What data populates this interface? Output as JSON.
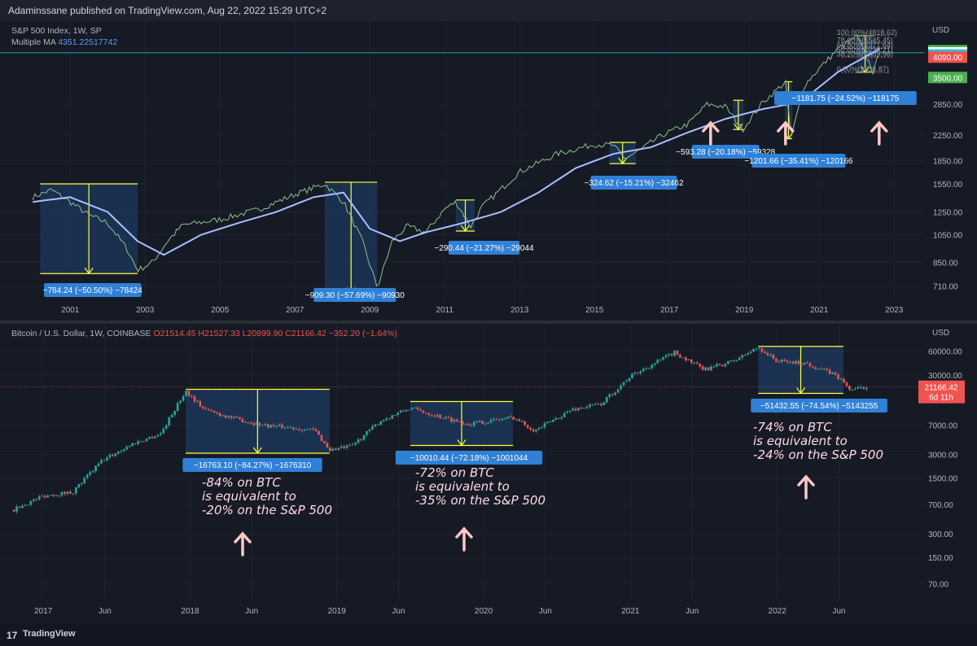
{
  "header": {
    "publisher": "Adaminssane published on TradingView.com, Aug 22, 2022 15:29 UTC+2"
  },
  "footer": {
    "brand": "TradingView",
    "logo": "17"
  },
  "colors": {
    "yellow": "#ffff3b",
    "box": "#1e3a5f",
    "label": "#2f80d6",
    "ma": "#a8c0ff",
    "up": "#26a69a",
    "down": "#ef5350",
    "arrow": "#ffc7c7"
  },
  "chart_data": [
    {
      "type": "line",
      "title": "S&P 500 Index, 1W, SP",
      "indicator": {
        "name": "Multiple MA",
        "value": "4351.22517742"
      },
      "currency": "USD",
      "scale": "log",
      "xlabel": "",
      "ylabel": "",
      "x_ticks": [
        "2001",
        "2003",
        "2005",
        "2007",
        "2009",
        "2011",
        "2013",
        "2015",
        "2017",
        "2019",
        "2021",
        "2023"
      ],
      "y_ticks": [
        710,
        850,
        1050,
        1250,
        1550,
        1850,
        2250,
        2850
      ],
      "y_tick_labels": [
        "710.00",
        "850.00",
        "1050.00",
        "1250.00",
        "1550.00",
        "1850.00",
        "2250.00",
        "2850.00"
      ],
      "price_tags": [
        {
          "value": 4300,
          "label": "4300.00",
          "color": "#4caf50"
        },
        {
          "value": 4228.49,
          "label": "4228.49",
          "color": "#ffffff"
        },
        {
          "value": 4162,
          "label": "4162.00",
          "color": "#26c6da"
        },
        {
          "value": 4090,
          "label": "4090.00",
          "color": "#ef5350"
        },
        {
          "value": 3500,
          "label": "3500.00",
          "color": "#4caf50"
        }
      ],
      "series": [
        {
          "values_x": [
            2000.0,
            2000.5,
            2001.0,
            2001.5,
            2002.0,
            2002.5,
            2002.8,
            2003.2,
            2003.6,
            2004.0,
            2005.0,
            2006.0,
            2007.0,
            2007.8,
            2008.3,
            2008.8,
            2009.2,
            2009.6,
            2010.0,
            2010.5,
            2011.0,
            2011.3,
            2011.7,
            2012.0,
            2013.0,
            2014.0,
            2015.0,
            2015.5,
            2015.8,
            2016.2,
            2016.8,
            2017.5,
            2018.0,
            2018.5,
            2018.95,
            2019.5,
            2020.1,
            2020.25,
            2020.6,
            2021.0,
            2021.5,
            2022.0,
            2022.45,
            2022.6
          ],
          "values_y": [
            1400,
            1480,
            1350,
            1220,
            1150,
            950,
            800,
            850,
            1000,
            1130,
            1180,
            1270,
            1430,
            1550,
            1350,
            1000,
            700,
            1000,
            1120,
            1070,
            1280,
            1350,
            1120,
            1300,
            1700,
            1950,
            2100,
            2080,
            1880,
            2000,
            2250,
            2450,
            2850,
            2800,
            2350,
            2900,
            3380,
            2200,
            3300,
            3750,
            4350,
            4800,
            3640,
            4230
          ]
        }
      ],
      "ma": {
        "values_x": [
          2000.0,
          2001.0,
          2002.0,
          2002.8,
          2003.5,
          2004.5,
          2005.5,
          2006.5,
          2007.5,
          2008.3,
          2009.0,
          2009.8,
          2010.5,
          2011.5,
          2012.5,
          2013.5,
          2014.5,
          2015.5,
          2016.5,
          2017.5,
          2018.5,
          2019.5,
          2020.5,
          2021.5,
          2022.6
        ],
        "values_y": [
          1350,
          1400,
          1250,
          1000,
          900,
          1050,
          1150,
          1250,
          1400,
          1450,
          1100,
          1000,
          1070,
          1150,
          1250,
          1450,
          1750,
          1950,
          2050,
          2300,
          2550,
          2750,
          2900,
          3650,
          4350
        ]
      },
      "drawdowns": [
        {
          "start": 2000.2,
          "end": 2002.8,
          "top": 1550,
          "bottom": 780,
          "label": "−784.24 (−50.50%) −78424"
        },
        {
          "start": 2007.8,
          "end": 2009.2,
          "top": 1570,
          "bottom": 670,
          "label": "−909.30 (−57.69%) −90930"
        },
        {
          "start": 2011.3,
          "end": 2011.8,
          "top": 1370,
          "bottom": 1080,
          "label": "−290.44 (−21.27%) −29044"
        },
        {
          "start": 2015.4,
          "end": 2016.1,
          "top": 2130,
          "bottom": 1810,
          "label": "−324.62 (−15.21%) −32462"
        },
        {
          "start": 2018.7,
          "end": 2018.98,
          "top": 2940,
          "bottom": 2350,
          "label": "−593.28 (−20.18%) −59328"
        },
        {
          "start": 2020.08,
          "end": 2020.28,
          "top": 3390,
          "bottom": 2190,
          "label": "−1201.66 (−35.41%) −120166"
        },
        {
          "start": 2022.0,
          "end": 2022.45,
          "top": 4818,
          "bottom": 3640,
          "label": "−1181.75 (−24.52%) −118175"
        }
      ],
      "fib": {
        "levels": [
          "100.00%(4818.62)",
          "78.60%(4545.45)",
          "61.80%(4371.64)",
          "50.00%(4230.21)",
          "38.20%(4089.96)",
          "0.00%(3636.87)"
        ],
        "values": [
          4818.62,
          4545.45,
          4371.64,
          4230.21,
          4089.96,
          3636.87
        ]
      }
    },
    {
      "type": "candlestick",
      "title": "Bitcoin / U.S. Dollar, 1W, COINBASE",
      "ohlc": {
        "o": "O21514.45",
        "h": "H21527.33",
        "l": "L20899.90",
        "c": "C21166.42",
        "chg": "−352.20 (−1.64%)"
      },
      "currency": "USD",
      "scale": "log",
      "xlabel": "",
      "ylabel": "",
      "x_ticks": [
        "2017",
        "Jun",
        "2018",
        "Jun",
        "2019",
        "Jun",
        "2020",
        "Jun",
        "2021",
        "Jun",
        "2022",
        "Jun"
      ],
      "x_tick_values": [
        2017.0,
        2017.42,
        2018.0,
        2018.42,
        2019.0,
        2019.42,
        2020.0,
        2020.42,
        2021.0,
        2021.42,
        2022.0,
        2022.42
      ],
      "y_ticks": [
        70,
        150,
        300,
        700,
        1500,
        3000,
        7000,
        30000,
        60000
      ],
      "y_tick_labels": [
        "70.00",
        "150.00",
        "300.00",
        "700.00",
        "1500.00",
        "3000.00",
        "7000.00",
        "30000.00",
        "60000.00"
      ],
      "last": {
        "label": "21166.42",
        "countdown": "6d 11h"
      },
      "series": [
        {
          "values_x": [
            2016.8,
            2017.0,
            2017.2,
            2017.4,
            2017.6,
            2017.8,
            2017.97,
            2018.1,
            2018.3,
            2018.5,
            2018.7,
            2018.85,
            2018.95,
            2019.1,
            2019.3,
            2019.5,
            2019.7,
            2019.9,
            2020.2,
            2020.35,
            2020.6,
            2020.8,
            2021.0,
            2021.3,
            2021.5,
            2021.7,
            2021.87,
            2022.0,
            2022.2,
            2022.4,
            2022.5,
            2022.62
          ],
          "values_y": [
            600,
            900,
            1000,
            2500,
            4000,
            5500,
            19000,
            11000,
            8500,
            7000,
            6500,
            6000,
            3400,
            3800,
            8000,
            11500,
            9000,
            7200,
            8800,
            6000,
            11000,
            13000,
            29000,
            58000,
            35000,
            45000,
            67000,
            45000,
            42000,
            30000,
            19500,
            21166
          ]
        }
      ],
      "drawdowns": [
        {
          "start": 2017.97,
          "end": 2018.95,
          "top": 19800,
          "bottom": 3100,
          "label": "−16763.10 (−84.27%) −1676310"
        },
        {
          "start": 2019.5,
          "end": 2020.2,
          "top": 13900,
          "bottom": 3880,
          "label": "−10010.44 (−72.18%) −1001044"
        },
        {
          "start": 2021.87,
          "end": 2022.45,
          "top": 69000,
          "bottom": 17600,
          "label": "−51432.55 (−74.54%) −5143255"
        }
      ]
    }
  ],
  "annotations": [
    {
      "lines": [
        "-84% on BTC",
        "is equivalent to",
        "-20% on the S&P 500"
      ]
    },
    {
      "lines": [
        "-72% on BTC",
        "is equivalent to",
        "-35% on the S&P 500"
      ]
    },
    {
      "lines": [
        "-74% on BTC",
        "is equivalent to",
        "-24% on the S&P 500"
      ]
    }
  ]
}
